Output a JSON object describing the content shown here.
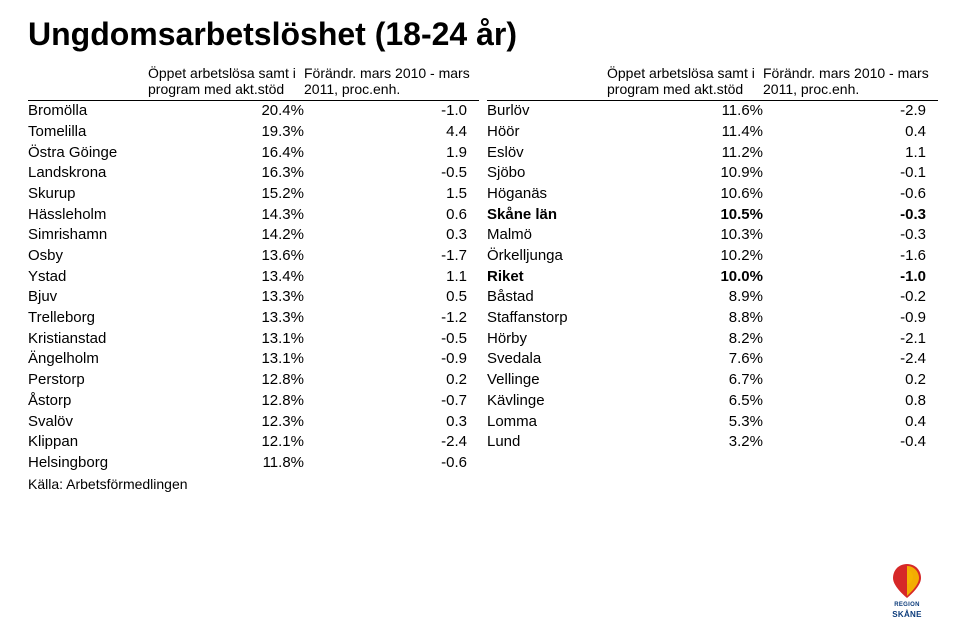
{
  "title": "Ungdomsarbetslöshet (18-24 år)",
  "headers": {
    "col_val": "Öppet arbetslösa samt i program med akt.stöd",
    "col_chg": "Förändr. mars 2010 - mars 2011, proc.enh.",
    "col_val_r": "Öppet arbetslösa samt i program med akt.stöd",
    "col_chg_r": "Förändr. mars 2010 - mars 2011, proc.enh."
  },
  "left": [
    {
      "name": "Bromölla",
      "val": "20.4%",
      "chg": "-1.0",
      "bold": false
    },
    {
      "name": "Tomelilla",
      "val": "19.3%",
      "chg": "4.4",
      "bold": false
    },
    {
      "name": "Östra Göinge",
      "val": "16.4%",
      "chg": "1.9",
      "bold": false
    },
    {
      "name": "Landskrona",
      "val": "16.3%",
      "chg": "-0.5",
      "bold": false
    },
    {
      "name": "Skurup",
      "val": "15.2%",
      "chg": "1.5",
      "bold": false
    },
    {
      "name": "Hässleholm",
      "val": "14.3%",
      "chg": "0.6",
      "bold": false
    },
    {
      "name": "Simrishamn",
      "val": "14.2%",
      "chg": "0.3",
      "bold": false
    },
    {
      "name": "Osby",
      "val": "13.6%",
      "chg": "-1.7",
      "bold": false
    },
    {
      "name": "Ystad",
      "val": "13.4%",
      "chg": "1.1",
      "bold": false
    },
    {
      "name": "Bjuv",
      "val": "13.3%",
      "chg": "0.5",
      "bold": false
    },
    {
      "name": "Trelleborg",
      "val": "13.3%",
      "chg": "-1.2",
      "bold": false
    },
    {
      "name": "Kristianstad",
      "val": "13.1%",
      "chg": "-0.5",
      "bold": false
    },
    {
      "name": "Ängelholm",
      "val": "13.1%",
      "chg": "-0.9",
      "bold": false
    },
    {
      "name": "Perstorp",
      "val": "12.8%",
      "chg": "0.2",
      "bold": false
    },
    {
      "name": "Åstorp",
      "val": "12.8%",
      "chg": "-0.7",
      "bold": false
    },
    {
      "name": "Svalöv",
      "val": "12.3%",
      "chg": "0.3",
      "bold": false
    },
    {
      "name": "Klippan",
      "val": "12.1%",
      "chg": "-2.4",
      "bold": false
    },
    {
      "name": "Helsingborg",
      "val": "11.8%",
      "chg": "-0.6",
      "bold": false
    }
  ],
  "right": [
    {
      "name": "Burlöv",
      "val": "11.6%",
      "chg": "-2.9",
      "bold": false
    },
    {
      "name": "Höör",
      "val": "11.4%",
      "chg": "0.4",
      "bold": false
    },
    {
      "name": "Eslöv",
      "val": "11.2%",
      "chg": "1.1",
      "bold": false
    },
    {
      "name": "Sjöbo",
      "val": "10.9%",
      "chg": "-0.1",
      "bold": false
    },
    {
      "name": "Höganäs",
      "val": "10.6%",
      "chg": "-0.6",
      "bold": false
    },
    {
      "name": "Skåne län",
      "val": "10.5%",
      "chg": "-0.3",
      "bold": true
    },
    {
      "name": "Malmö",
      "val": "10.3%",
      "chg": "-0.3",
      "bold": false
    },
    {
      "name": "Örkelljunga",
      "val": "10.2%",
      "chg": "-1.6",
      "bold": false
    },
    {
      "name": "Riket",
      "val": "10.0%",
      "chg": "-1.0",
      "bold": true
    },
    {
      "name": "Båstad",
      "val": "8.9%",
      "chg": "-0.2",
      "bold": false
    },
    {
      "name": "Staffanstorp",
      "val": "8.8%",
      "chg": "-0.9",
      "bold": false
    },
    {
      "name": "Hörby",
      "val": "8.2%",
      "chg": "-2.1",
      "bold": false
    },
    {
      "name": "Svedala",
      "val": "7.6%",
      "chg": "-2.4",
      "bold": false
    },
    {
      "name": "Vellinge",
      "val": "6.7%",
      "chg": "0.2",
      "bold": false
    },
    {
      "name": "Kävlinge",
      "val": "6.5%",
      "chg": "0.8",
      "bold": false
    },
    {
      "name": "Lomma",
      "val": "5.3%",
      "chg": "0.4",
      "bold": false
    },
    {
      "name": "Lund",
      "val": "3.2%",
      "chg": "-0.4",
      "bold": false
    }
  ],
  "source": "Källa: Arbetsförmedlingen",
  "logo": {
    "text": "SKÅNE",
    "red": "#d62828",
    "yellow": "#f4b400",
    "blue": "#0a3a7a"
  }
}
